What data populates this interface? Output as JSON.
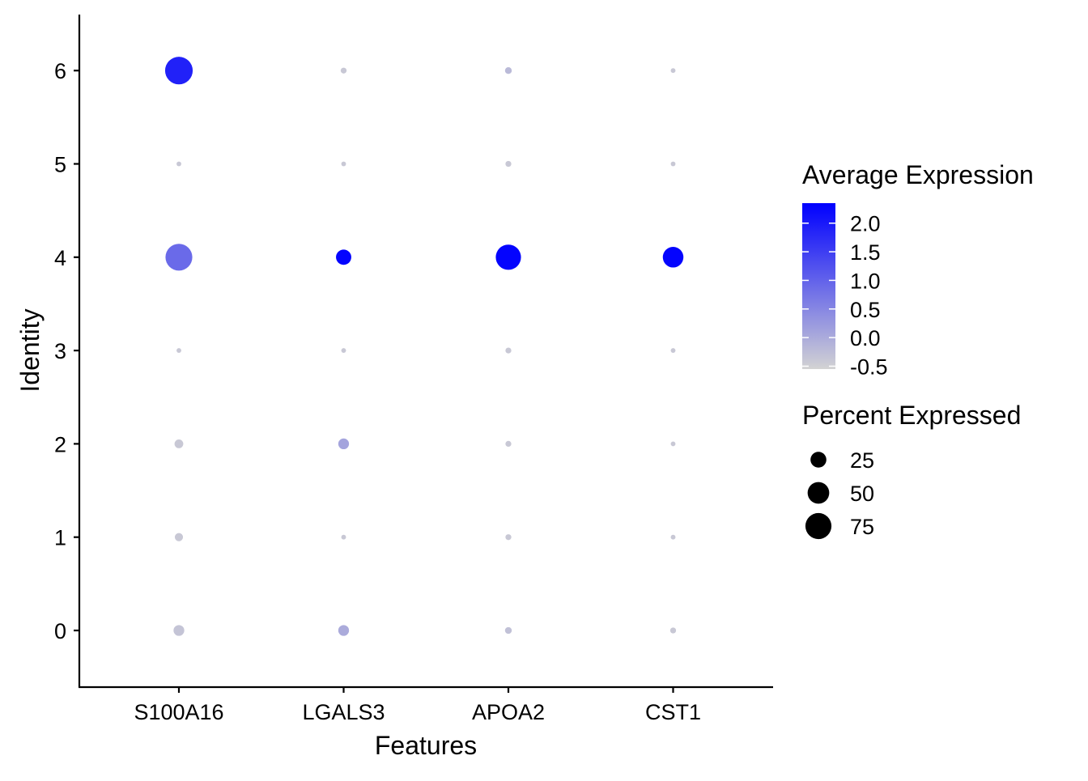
{
  "chart_data": {
    "type": "dot",
    "xlabel": "Features",
    "ylabel": "Identity",
    "categories": [
      "S100A16",
      "LGALS3",
      "APOA2",
      "CST1"
    ],
    "identities": [
      "0",
      "1",
      "2",
      "3",
      "4",
      "5",
      "6"
    ],
    "points": [
      {
        "feature": "S100A16",
        "identity": "6",
        "pct": 85,
        "avg": 1.9
      },
      {
        "feature": "S100A16",
        "identity": "5",
        "pct": 1,
        "avg": -0.4
      },
      {
        "feature": "S100A16",
        "identity": "4",
        "pct": 80,
        "avg": 0.9
      },
      {
        "feature": "S100A16",
        "identity": "3",
        "pct": 1,
        "avg": -0.4
      },
      {
        "feature": "S100A16",
        "identity": "2",
        "pct": 6,
        "avg": -0.4
      },
      {
        "feature": "S100A16",
        "identity": "1",
        "pct": 5,
        "avg": -0.4
      },
      {
        "feature": "S100A16",
        "identity": "0",
        "pct": 10,
        "avg": -0.35
      },
      {
        "feature": "LGALS3",
        "identity": "6",
        "pct": 2,
        "avg": -0.4
      },
      {
        "feature": "LGALS3",
        "identity": "5",
        "pct": 1,
        "avg": -0.4
      },
      {
        "feature": "LGALS3",
        "identity": "4",
        "pct": 23,
        "avg": 2.3
      },
      {
        "feature": "LGALS3",
        "identity": "3",
        "pct": 1,
        "avg": -0.4
      },
      {
        "feature": "LGALS3",
        "identity": "2",
        "pct": 10,
        "avg": 0.1
      },
      {
        "feature": "LGALS3",
        "identity": "1",
        "pct": 1,
        "avg": -0.4
      },
      {
        "feature": "LGALS3",
        "identity": "0",
        "pct": 10,
        "avg": 0.0
      },
      {
        "feature": "APOA2",
        "identity": "6",
        "pct": 3,
        "avg": -0.2
      },
      {
        "feature": "APOA2",
        "identity": "5",
        "pct": 2,
        "avg": -0.4
      },
      {
        "feature": "APOA2",
        "identity": "4",
        "pct": 70,
        "avg": 2.3
      },
      {
        "feature": "APOA2",
        "identity": "3",
        "pct": 2,
        "avg": -0.4
      },
      {
        "feature": "APOA2",
        "identity": "2",
        "pct": 2,
        "avg": -0.4
      },
      {
        "feature": "APOA2",
        "identity": "1",
        "pct": 2,
        "avg": -0.4
      },
      {
        "feature": "APOA2",
        "identity": "0",
        "pct": 3,
        "avg": -0.3
      },
      {
        "feature": "CST1",
        "identity": "6",
        "pct": 1,
        "avg": -0.4
      },
      {
        "feature": "CST1",
        "identity": "5",
        "pct": 1,
        "avg": -0.4
      },
      {
        "feature": "CST1",
        "identity": "4",
        "pct": 45,
        "avg": 2.3
      },
      {
        "feature": "CST1",
        "identity": "3",
        "pct": 1,
        "avg": -0.4
      },
      {
        "feature": "CST1",
        "identity": "2",
        "pct": 1,
        "avg": -0.4
      },
      {
        "feature": "CST1",
        "identity": "1",
        "pct": 1,
        "avg": -0.4
      },
      {
        "feature": "CST1",
        "identity": "0",
        "pct": 2,
        "avg": -0.4
      }
    ],
    "color_legend": {
      "title": "Average Expression",
      "ticks": [
        "2.0",
        "1.5",
        "1.0",
        "0.5",
        "0.0",
        "-0.5"
      ],
      "range": [
        -0.55,
        2.35
      ],
      "low_color": "#d3d3d3",
      "high_color": "#0000ff"
    },
    "size_legend": {
      "title": "Percent Expressed",
      "entries": [
        {
          "label": "25",
          "value": 25
        },
        {
          "label": "50",
          "value": 50
        },
        {
          "label": "75",
          "value": 75
        }
      ]
    },
    "grid": false,
    "legend_position": "right"
  }
}
